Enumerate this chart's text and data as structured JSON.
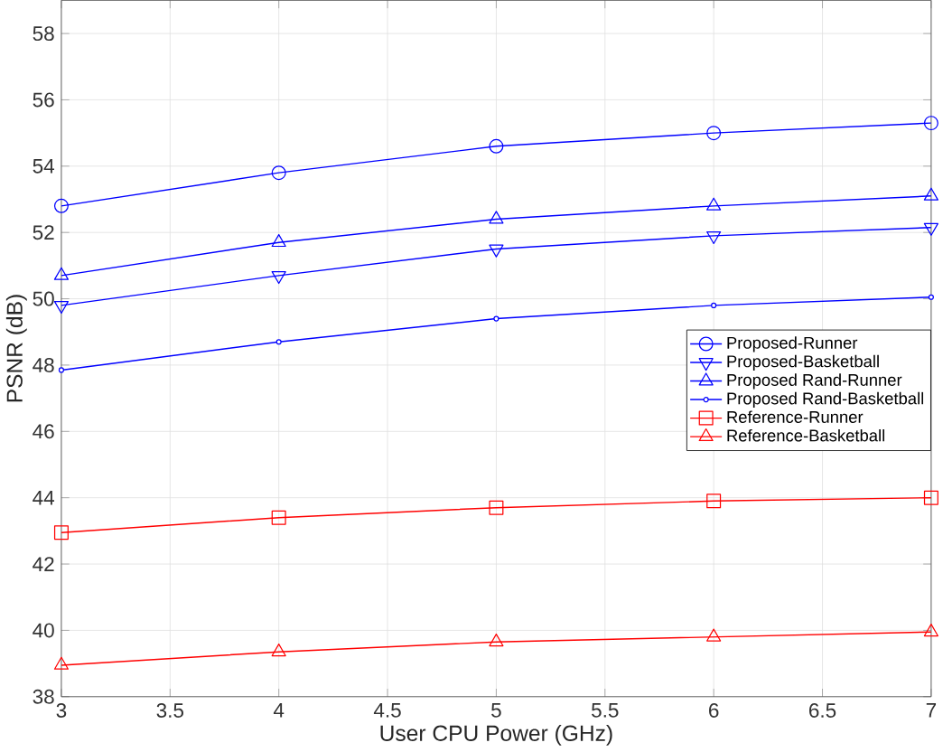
{
  "chart_data": {
    "type": "line",
    "xlabel": "User CPU Power (GHz)",
    "ylabel": "PSNR (dB)",
    "x": [
      3,
      4,
      5,
      6,
      7
    ],
    "xlim": [
      3,
      7
    ],
    "xticks": [
      3,
      3.5,
      4,
      4.5,
      5,
      5.5,
      6,
      6.5,
      7
    ],
    "ylim": [
      38,
      59
    ],
    "yticks": [
      38,
      40,
      42,
      44,
      46,
      48,
      50,
      52,
      54,
      56,
      58
    ],
    "grid": true,
    "legend": "right",
    "line_style": "solid",
    "series": [
      {
        "name": "Proposed-Runner",
        "color": "#0000ff",
        "marker": "circle",
        "values": [
          52.8,
          53.8,
          54.6,
          55.0,
          55.3
        ]
      },
      {
        "name": "Proposed-Basketball",
        "color": "#0000ff",
        "marker": "triangle_down",
        "values": [
          49.8,
          50.7,
          51.5,
          51.9,
          52.15
        ]
      },
      {
        "name": "Proposed Rand-Runner",
        "color": "#0000ff",
        "marker": "triangle",
        "values": [
          50.7,
          51.7,
          52.4,
          52.8,
          53.1
        ]
      },
      {
        "name": "Proposed Rand-Basketball",
        "color": "#0000ff",
        "marker": "point",
        "values": [
          47.85,
          48.7,
          49.4,
          49.8,
          50.05
        ]
      },
      {
        "name": "Reference-Runner",
        "color": "#ff0000",
        "marker": "square",
        "values": [
          42.95,
          43.4,
          43.7,
          43.9,
          44.0
        ]
      },
      {
        "name": "Reference-Basketball",
        "color": "#ff0000",
        "marker": "triangle",
        "values": [
          38.95,
          39.35,
          39.65,
          39.8,
          39.95
        ]
      }
    ]
  }
}
